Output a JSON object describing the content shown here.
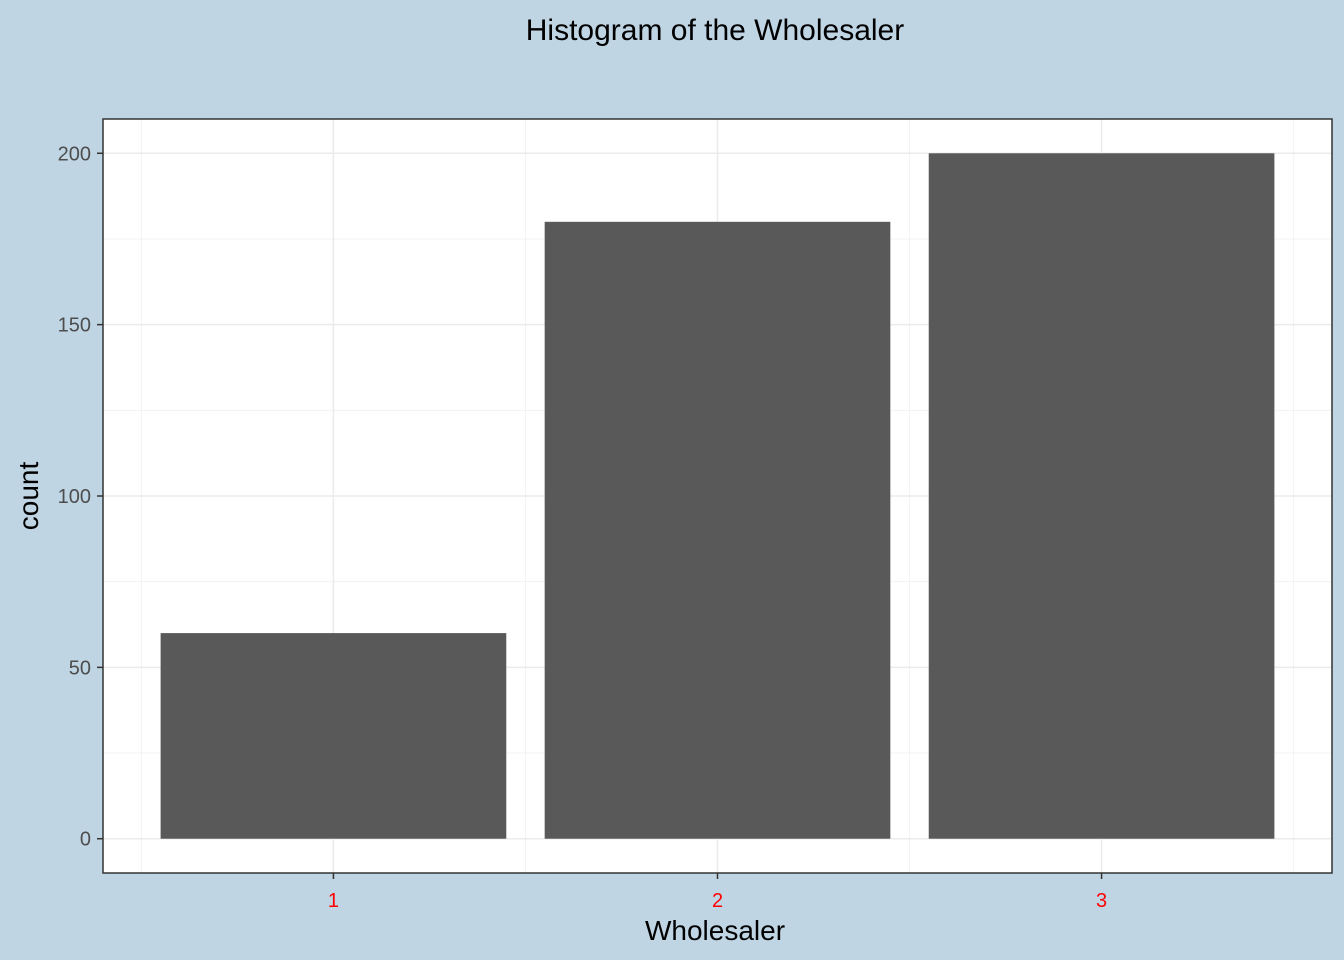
{
  "chart_data": {
    "type": "bar",
    "title": "Histogram of the Wholesaler",
    "xlabel": "Wholesaler",
    "ylabel": "count",
    "categories": [
      "1",
      "2",
      "3"
    ],
    "values": [
      60,
      180,
      200
    ],
    "ylim": [
      -10,
      210
    ],
    "y_ticks": [
      0,
      50,
      100,
      150,
      200
    ],
    "y_tick_labels": [
      "0",
      "50",
      "100",
      "150",
      "200"
    ],
    "grid": true,
    "colors": {
      "background": "#bfd5e4",
      "panel": "#ffffff",
      "bar": "#595959",
      "grid_major": "#ebebeb",
      "grid_minor": "#f3f3f3",
      "x_tick_label": "#ff0000",
      "y_tick_label": "#4d4d4d",
      "text": "#000000"
    }
  }
}
